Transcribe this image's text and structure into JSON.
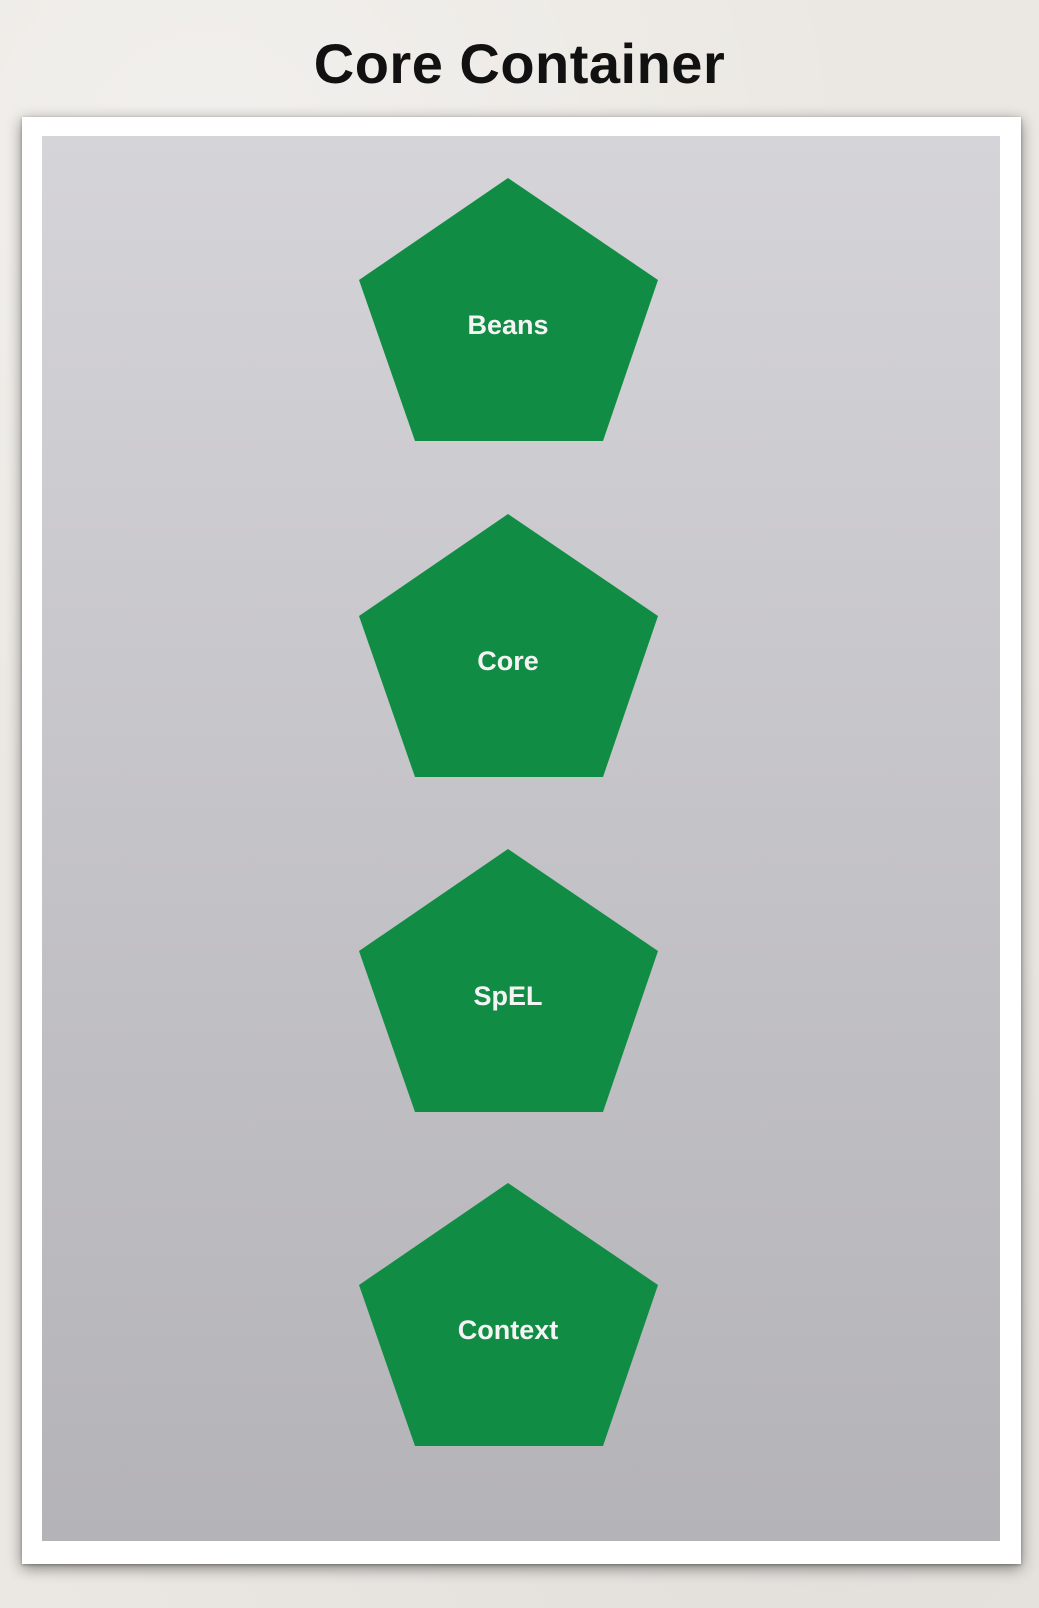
{
  "title": "Core Container",
  "modules": [
    {
      "label": "Beans"
    },
    {
      "label": "Core"
    },
    {
      "label": "SpEL"
    },
    {
      "label": "Context"
    }
  ],
  "colors": {
    "module_fill": "#118c44",
    "module_text": "#f4f4f4",
    "panel_top": "#d5d4d8",
    "panel_bottom": "#b4b3b7",
    "title": "#111111"
  }
}
